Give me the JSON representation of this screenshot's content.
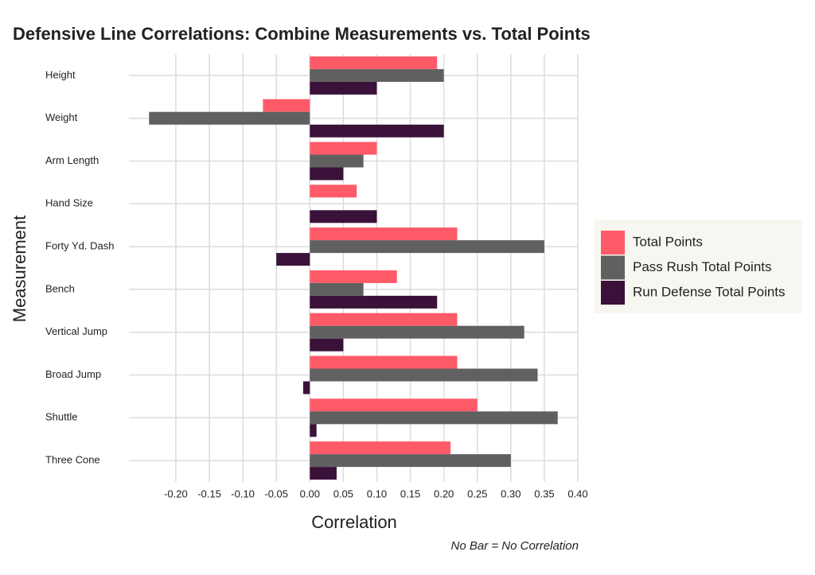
{
  "chart_data": {
    "type": "barh",
    "title": "Defensive Line Correlations: Combine Measurements vs. Total Points",
    "x_label": "Correlation",
    "y_label": "Measurement",
    "caption": "No Bar = No Correlation",
    "categories": [
      "Height",
      "Weight",
      "Arm Length",
      "Hand Size",
      "Forty Yd. Dash",
      "Bench",
      "Vertical Jump",
      "Broad Jump",
      "Shuttle",
      "Three Cone"
    ],
    "series": [
      {
        "name": "Total Points",
        "color": "#ff5a68",
        "values": [
          0.19,
          -0.07,
          0.1,
          0.07,
          0.22,
          0.13,
          0.22,
          0.22,
          0.25,
          0.21
        ]
      },
      {
        "name": "Pass Rush Total Points",
        "color": "#606060",
        "values": [
          0.2,
          -0.24,
          0.08,
          0,
          0.35,
          0.08,
          0.32,
          0.34,
          0.37,
          0.3
        ]
      },
      {
        "name": "Run Defense Total Points",
        "color": "#3a1239",
        "values": [
          0.1,
          0.2,
          0.05,
          0.1,
          -0.05,
          0.19,
          0.05,
          -0.01,
          0.01,
          0.04
        ]
      }
    ],
    "xlim": [
      -0.27,
      0.4
    ],
    "xticks": [
      {
        "value": -0.2,
        "label": "-0.20"
      },
      {
        "value": -0.15,
        "label": "-0.15"
      },
      {
        "value": -0.1,
        "label": "-0.10"
      },
      {
        "value": -0.05,
        "label": "-0.05"
      },
      {
        "value": 0,
        "label": "0.00"
      },
      {
        "value": 0.05,
        "label": "0.05"
      },
      {
        "value": 0.1,
        "label": "0.10"
      },
      {
        "value": 0.15,
        "label": "0.15"
      },
      {
        "value": 0.2,
        "label": "0.20"
      },
      {
        "value": 0.25,
        "label": "0.25"
      },
      {
        "value": 0.3,
        "label": "0.30"
      },
      {
        "value": 0.35,
        "label": "0.35"
      },
      {
        "value": 0.4,
        "label": "0.40"
      }
    ],
    "grid": true,
    "legend": "right"
  }
}
